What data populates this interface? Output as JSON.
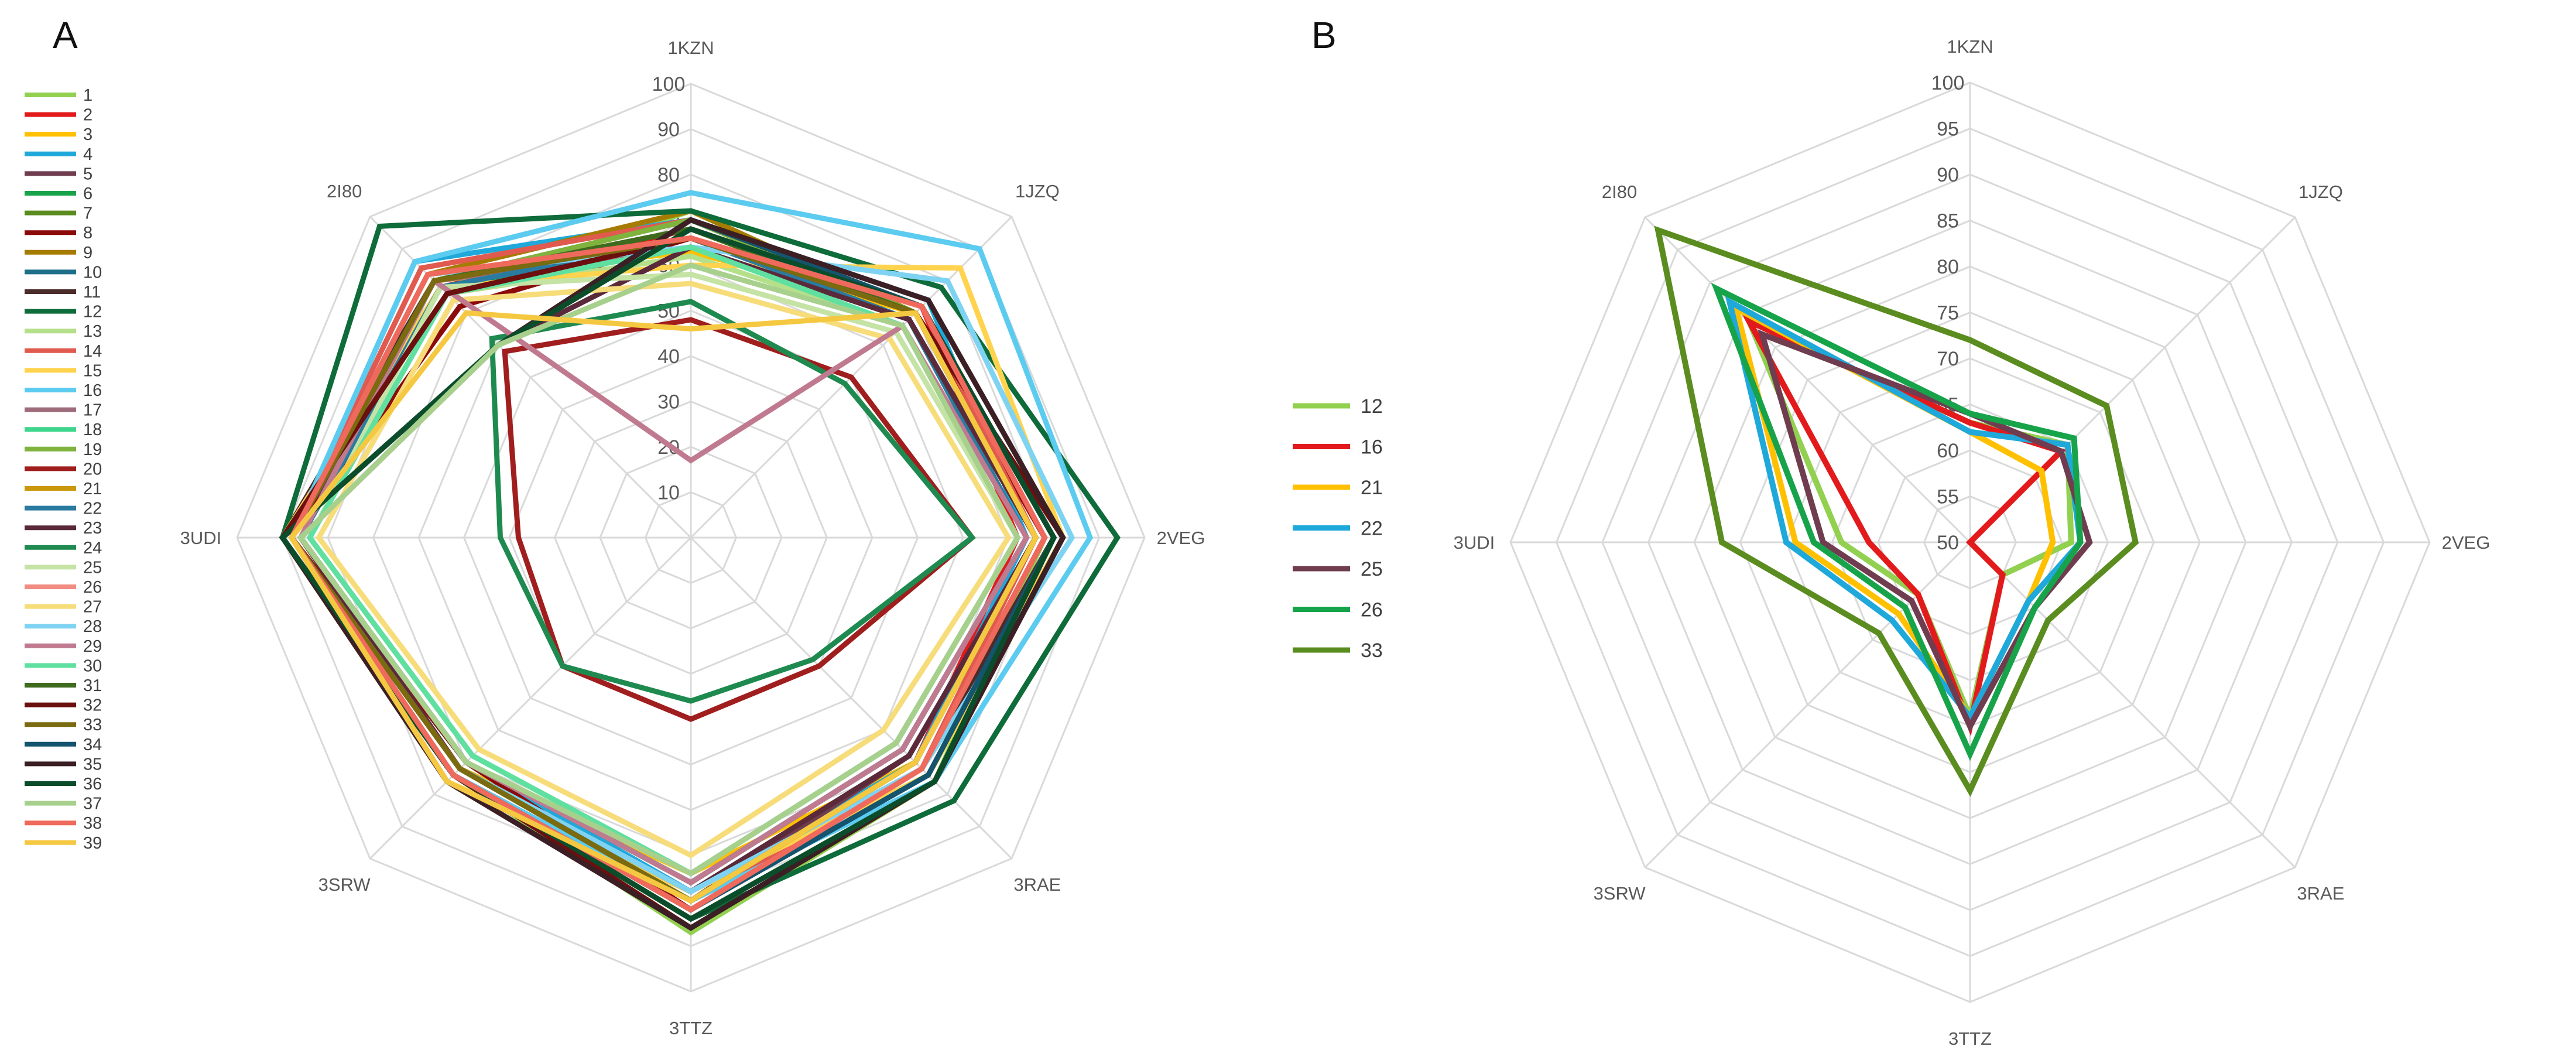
{
  "chart_data": [
    {
      "panel": "A",
      "type": "radar",
      "axes": [
        "1KZN",
        "1JZQ",
        "2VEG",
        "3RAE",
        "3TTZ",
        "3SRW",
        "3UDI",
        "2I80"
      ],
      "rlim": [
        0,
        100
      ],
      "ticks": [
        10,
        20,
        30,
        40,
        50,
        60,
        70,
        80,
        90,
        100
      ],
      "legend_position": "left",
      "series": [
        {
          "name": "1",
          "color": "#92D050",
          "values": [
            72,
            70,
            78,
            76,
            87,
            74,
            90,
            76
          ]
        },
        {
          "name": "2",
          "color": "#E31A1C",
          "values": [
            68,
            72,
            72,
            70,
            80,
            76,
            88,
            78
          ]
        },
        {
          "name": "3",
          "color": "#FFC000",
          "values": [
            63,
            70,
            76,
            70,
            74,
            72,
            88,
            80
          ]
        },
        {
          "name": "4",
          "color": "#1FA8DA",
          "values": [
            70,
            74,
            74,
            70,
            78,
            70,
            88,
            86
          ]
        },
        {
          "name": "5",
          "color": "#6F3D4F",
          "values": [
            66,
            68,
            76,
            68,
            80,
            72,
            88,
            78
          ]
        },
        {
          "name": "6",
          "color": "#17A34A",
          "values": [
            64,
            68,
            74,
            66,
            76,
            70,
            86,
            78
          ]
        },
        {
          "name": "7",
          "color": "#5B8C1F",
          "values": [
            70,
            70,
            76,
            70,
            80,
            72,
            88,
            80
          ]
        },
        {
          "name": "8",
          "color": "#8B0A0A",
          "values": [
            66,
            70,
            78,
            72,
            82,
            70,
            88,
            72
          ]
        },
        {
          "name": "9",
          "color": "#A67C00",
          "values": [
            72,
            70,
            76,
            70,
            80,
            72,
            88,
            82
          ]
        },
        {
          "name": "10",
          "color": "#1F6F8B",
          "values": [
            66,
            68,
            74,
            66,
            76,
            70,
            86,
            78
          ]
        },
        {
          "name": "11",
          "color": "#4A2C2A",
          "values": [
            68,
            72,
            80,
            72,
            82,
            74,
            90,
            80
          ]
        },
        {
          "name": "12",
          "color": "#0E6B3A",
          "values": [
            72,
            78,
            94,
            82,
            84,
            74,
            90,
            97
          ]
        },
        {
          "name": "13",
          "color": "#B5E08A",
          "values": [
            62,
            66,
            72,
            64,
            74,
            68,
            84,
            76
          ]
        },
        {
          "name": "14",
          "color": "#E05A4F",
          "values": [
            70,
            72,
            76,
            72,
            80,
            74,
            88,
            84
          ]
        },
        {
          "name": "15",
          "color": "#FFD34D",
          "values": [
            60,
            84,
            82,
            74,
            78,
            76,
            90,
            78
          ]
        },
        {
          "name": "16",
          "color": "#5CCBF0",
          "values": [
            76,
            90,
            88,
            76,
            80,
            74,
            88,
            86
          ]
        },
        {
          "name": "17",
          "color": "#9E6B7B",
          "values": [
            64,
            68,
            76,
            70,
            80,
            72,
            86,
            80
          ]
        },
        {
          "name": "18",
          "color": "#3DD68C",
          "values": [
            64,
            66,
            72,
            64,
            74,
            68,
            84,
            76
          ]
        },
        {
          "name": "19",
          "color": "#7FB33E",
          "values": [
            70,
            70,
            76,
            70,
            80,
            72,
            88,
            80
          ]
        },
        {
          "name": "20",
          "color": "#A01E1E",
          "values": [
            48,
            50,
            62,
            40,
            40,
            40,
            38,
            58
          ]
        },
        {
          "name": "21",
          "color": "#C9980B",
          "values": [
            68,
            70,
            76,
            70,
            80,
            72,
            88,
            80
          ]
        },
        {
          "name": "22",
          "color": "#2A7BA0",
          "values": [
            66,
            68,
            74,
            66,
            76,
            70,
            86,
            78
          ]
        },
        {
          "name": "23",
          "color": "#5A2A3A",
          "values": [
            64,
            68,
            76,
            68,
            78,
            72,
            86,
            60
          ]
        },
        {
          "name": "24",
          "color": "#1E8A4F",
          "values": [
            52,
            48,
            62,
            38,
            36,
            40,
            42,
            62
          ]
        },
        {
          "name": "25",
          "color": "#C5E3A5",
          "values": [
            58,
            64,
            72,
            64,
            74,
            68,
            84,
            78
          ]
        },
        {
          "name": "26",
          "color": "#F28C82",
          "values": [
            66,
            70,
            76,
            70,
            80,
            72,
            88,
            82
          ]
        },
        {
          "name": "27",
          "color": "#F7DC7A",
          "values": [
            56,
            62,
            70,
            60,
            70,
            66,
            82,
            74
          ]
        },
        {
          "name": "28",
          "color": "#7FD3F2",
          "values": [
            64,
            80,
            84,
            72,
            78,
            72,
            88,
            82
          ]
        },
        {
          "name": "29",
          "color": "#C07A90",
          "values": [
            17,
            66,
            74,
            66,
            76,
            70,
            86,
            80
          ]
        },
        {
          "name": "30",
          "color": "#5FE0A0",
          "values": [
            64,
            66,
            72,
            64,
            74,
            68,
            84,
            76
          ]
        },
        {
          "name": "31",
          "color": "#3E6B1E",
          "values": [
            68,
            70,
            76,
            70,
            80,
            72,
            88,
            80
          ]
        },
        {
          "name": "32",
          "color": "#6B0F0F",
          "values": [
            66,
            70,
            82,
            76,
            86,
            74,
            90,
            76
          ]
        },
        {
          "name": "33",
          "color": "#7A6A10",
          "values": [
            66,
            70,
            76,
            70,
            80,
            72,
            88,
            80
          ]
        },
        {
          "name": "34",
          "color": "#14546E",
          "values": [
            70,
            72,
            80,
            74,
            82,
            74,
            90,
            60
          ]
        },
        {
          "name": "35",
          "color": "#3B1F24",
          "values": [
            70,
            74,
            82,
            76,
            86,
            76,
            90,
            60
          ]
        },
        {
          "name": "36",
          "color": "#0B4D2A",
          "values": [
            68,
            72,
            80,
            76,
            84,
            74,
            90,
            60
          ]
        },
        {
          "name": "37",
          "color": "#A8D08D",
          "values": [
            60,
            66,
            72,
            64,
            74,
            70,
            86,
            60
          ]
        },
        {
          "name": "38",
          "color": "#EF6A5C",
          "values": [
            66,
            72,
            78,
            72,
            82,
            74,
            88,
            82
          ]
        },
        {
          "name": "39",
          "color": "#F5C842",
          "values": [
            46,
            70,
            76,
            70,
            80,
            76,
            88,
            70
          ]
        }
      ]
    },
    {
      "panel": "B",
      "type": "radar",
      "axes": [
        "1KZN",
        "1JZQ",
        "2VEG",
        "3RAE",
        "3TTZ",
        "3SRW",
        "3UDI",
        "2I80"
      ],
      "rlim": [
        50,
        100
      ],
      "ticks": [
        50,
        55,
        60,
        65,
        70,
        75,
        80,
        85,
        90,
        95,
        100
      ],
      "legend_position": "left",
      "series": [
        {
          "name": "12",
          "color": "#92D050",
          "values": [
            63,
            65,
            61,
            55,
            69,
            58,
            64,
            84
          ]
        },
        {
          "name": "16",
          "color": "#E31A1C",
          "values": [
            63,
            64,
            50,
            55,
            70,
            58,
            61,
            84
          ]
        },
        {
          "name": "21",
          "color": "#FFC000",
          "values": [
            62,
            61,
            59,
            59,
            69,
            61,
            69,
            86
          ]
        },
        {
          "name": "22",
          "color": "#1FA8DA",
          "values": [
            62,
            65,
            62,
            59,
            69,
            62,
            70,
            87
          ]
        },
        {
          "name": "25",
          "color": "#6F3D4F",
          "values": [
            64,
            64,
            63,
            60,
            70,
            59,
            66,
            82
          ]
        },
        {
          "name": "26",
          "color": "#17A34A",
          "values": [
            64,
            66,
            62,
            60,
            73,
            60,
            67,
            89
          ]
        },
        {
          "name": "33",
          "color": "#5B8C1F",
          "values": [
            72,
            71,
            68,
            62,
            77,
            64,
            77,
            98
          ]
        }
      ]
    }
  ],
  "panel_labels": {
    "a": "A",
    "b": "B"
  }
}
